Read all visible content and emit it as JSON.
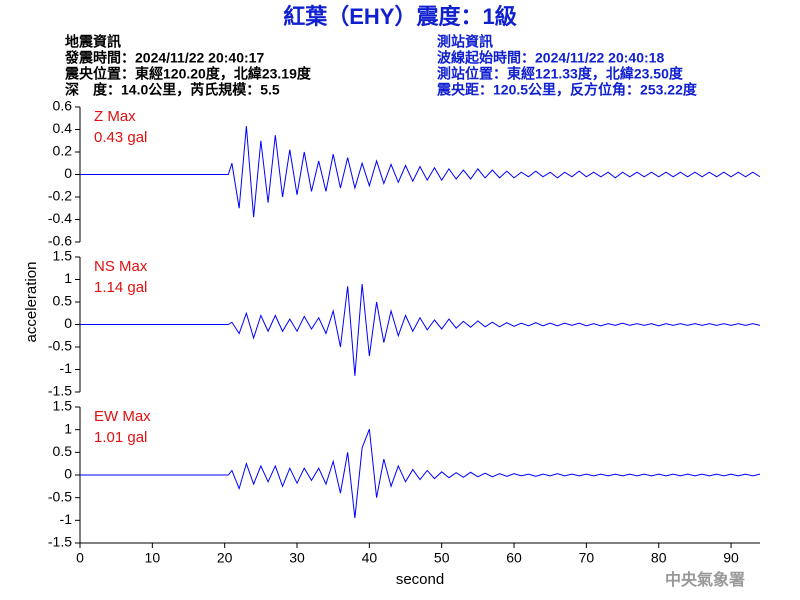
{
  "header": {
    "title": "紅葉（EHY）震度：1級",
    "left": [
      "地震資訊",
      "發震時間：2024/11/22 20:40:17",
      "震央位置：東經120.20度，北緯23.19度",
      "深　度：14.0公里，芮氏規模：5.5"
    ],
    "right": [
      "測站資訊",
      "波線起始時間：2024/11/22 20:40:18",
      "測站位置：東經121.33度，北緯23.50度",
      "震央距：120.5公里，反方位角：253.22度"
    ]
  },
  "y_label": "acceleration",
  "watermark": "中央氣象署",
  "chart_data": [
    {
      "type": "line",
      "annotations": [
        "Z Max",
        "0.43 gal"
      ],
      "xlim": [
        0,
        94
      ],
      "ylim": [
        -0.6,
        0.6
      ],
      "yticks": [
        0.6,
        0.4,
        0.2,
        0,
        -0.2,
        -0.4,
        -0.6
      ],
      "x": [
        0,
        20.5,
        21,
        22,
        23,
        24,
        25,
        26,
        27,
        28,
        29,
        30,
        31,
        32,
        33,
        34,
        35,
        36,
        37,
        38,
        39,
        40,
        41,
        42,
        43,
        44,
        45,
        46,
        47,
        48,
        49,
        50,
        51,
        52,
        53,
        54,
        55,
        56,
        57,
        58,
        59,
        60,
        61,
        62,
        63,
        64,
        65,
        66,
        67,
        68,
        69,
        70,
        71,
        72,
        73,
        74,
        75,
        76,
        77,
        78,
        79,
        80,
        81,
        82,
        83,
        84,
        85,
        86,
        87,
        88,
        89,
        90,
        91,
        92,
        93,
        94
      ],
      "series": [
        {
          "color": "#0000ff",
          "values": [
            0,
            0,
            0.1,
            -0.3,
            0.43,
            -0.38,
            0.3,
            -0.25,
            0.35,
            -0.2,
            0.22,
            -0.18,
            0.2,
            -0.15,
            0.12,
            -0.15,
            0.18,
            -0.12,
            0.15,
            -0.12,
            0.1,
            -0.1,
            0.12,
            -0.08,
            0.09,
            -0.07,
            0.08,
            -0.06,
            0.07,
            -0.05,
            0.06,
            -0.05,
            0.05,
            -0.04,
            0.04,
            -0.04,
            0.05,
            -0.03,
            0.04,
            -0.03,
            0.03,
            -0.03,
            0.02,
            -0.02,
            0.03,
            -0.02,
            0.02,
            -0.03,
            0.02,
            -0.02,
            0.03,
            -0.02,
            0.02,
            -0.02,
            0.02,
            -0.03,
            0.02,
            -0.02,
            0.02,
            -0.02,
            0.02,
            -0.02,
            0.02,
            -0.02,
            0.02,
            -0.02,
            0.02,
            -0.02,
            0.02,
            -0.02,
            0.02,
            -0.02,
            0.02,
            -0.02,
            0.02,
            -0.02
          ]
        }
      ]
    },
    {
      "type": "line",
      "annotations": [
        "NS Max",
        "1.14 gal"
      ],
      "xlim": [
        0,
        94
      ],
      "ylim": [
        -1.5,
        1.5
      ],
      "yticks": [
        1.5,
        1,
        0.5,
        0,
        -0.5,
        -1,
        -1.5
      ],
      "x": [
        0,
        20.5,
        21,
        22,
        23,
        24,
        25,
        26,
        27,
        28,
        29,
        30,
        31,
        32,
        33,
        34,
        35,
        36,
        37,
        38,
        39,
        40,
        41,
        42,
        43,
        44,
        45,
        46,
        47,
        48,
        49,
        50,
        51,
        52,
        53,
        54,
        55,
        56,
        57,
        58,
        59,
        60,
        61,
        62,
        63,
        64,
        65,
        66,
        67,
        68,
        69,
        70,
        71,
        72,
        73,
        74,
        75,
        76,
        77,
        78,
        79,
        80,
        81,
        82,
        83,
        84,
        85,
        86,
        87,
        88,
        89,
        90,
        91,
        92,
        93,
        94
      ],
      "series": [
        {
          "color": "#0000ff",
          "values": [
            0,
            0,
            0.05,
            -0.2,
            0.25,
            -0.3,
            0.2,
            -0.15,
            0.2,
            -0.15,
            0.12,
            -0.15,
            0.18,
            -0.1,
            0.15,
            -0.2,
            0.3,
            -0.5,
            0.85,
            -1.14,
            0.9,
            -0.7,
            0.5,
            -0.4,
            0.3,
            -0.25,
            0.2,
            -0.15,
            0.15,
            -0.12,
            0.1,
            -0.1,
            0.12,
            -0.08,
            0.07,
            -0.06,
            0.08,
            -0.05,
            0.05,
            -0.05,
            0.04,
            -0.04,
            0.03,
            -0.03,
            0.04,
            -0.03,
            0.03,
            -0.03,
            0.03,
            -0.02,
            0.03,
            -0.03,
            0.02,
            -0.03,
            0.02,
            -0.02,
            0.03,
            -0.02,
            0.02,
            -0.02,
            0.02,
            -0.03,
            0.02,
            -0.02,
            0.02,
            -0.02,
            0.02,
            -0.02,
            0.02,
            -0.02,
            0.02,
            -0.02,
            0.02,
            -0.02,
            0.02,
            -0.02
          ]
        }
      ]
    },
    {
      "type": "line",
      "annotations": [
        "EW Max",
        "1.01 gal"
      ],
      "xlim": [
        0,
        94
      ],
      "ylim": [
        -1.5,
        1.5
      ],
      "yticks": [
        1.5,
        1,
        0.5,
        0,
        -0.5,
        -1,
        -1.5
      ],
      "xticks": [
        0,
        10,
        20,
        30,
        40,
        50,
        60,
        70,
        80,
        90
      ],
      "x_label": "second",
      "x": [
        0,
        20.5,
        21,
        22,
        23,
        24,
        25,
        26,
        27,
        28,
        29,
        30,
        31,
        32,
        33,
        34,
        35,
        36,
        37,
        38,
        39,
        40,
        41,
        42,
        43,
        44,
        45,
        46,
        47,
        48,
        49,
        50,
        51,
        52,
        53,
        54,
        55,
        56,
        57,
        58,
        59,
        60,
        61,
        62,
        63,
        64,
        65,
        66,
        67,
        68,
        69,
        70,
        71,
        72,
        73,
        74,
        75,
        76,
        77,
        78,
        79,
        80,
        81,
        82,
        83,
        84,
        85,
        86,
        87,
        88,
        89,
        90,
        91,
        92,
        93,
        94
      ],
      "series": [
        {
          "color": "#0000ff",
          "values": [
            0,
            0,
            0.1,
            -0.3,
            0.25,
            -0.2,
            0.2,
            -0.15,
            0.2,
            -0.25,
            0.15,
            -0.18,
            0.15,
            -0.12,
            0.15,
            -0.2,
            0.3,
            -0.4,
            0.5,
            -0.95,
            0.6,
            1.01,
            -0.5,
            0.35,
            -0.25,
            0.2,
            -0.15,
            0.12,
            -0.1,
            0.1,
            -0.08,
            0.07,
            -0.06,
            0.05,
            -0.05,
            0.06,
            -0.04,
            0.04,
            -0.04,
            0.03,
            -0.03,
            0.03,
            -0.02,
            0.02,
            -0.03,
            0.02,
            -0.02,
            0.03,
            -0.02,
            0.02,
            -0.02,
            0.02,
            -0.02,
            0.02,
            -0.02,
            0.02,
            -0.02,
            0.02,
            -0.02,
            0.02,
            -0.02,
            0.02,
            -0.02,
            0.02,
            -0.02,
            0.02,
            -0.02,
            0.02,
            -0.02,
            0.02,
            -0.02,
            0.02,
            -0.02,
            0.02,
            -0.02,
            0.02
          ]
        }
      ]
    }
  ]
}
